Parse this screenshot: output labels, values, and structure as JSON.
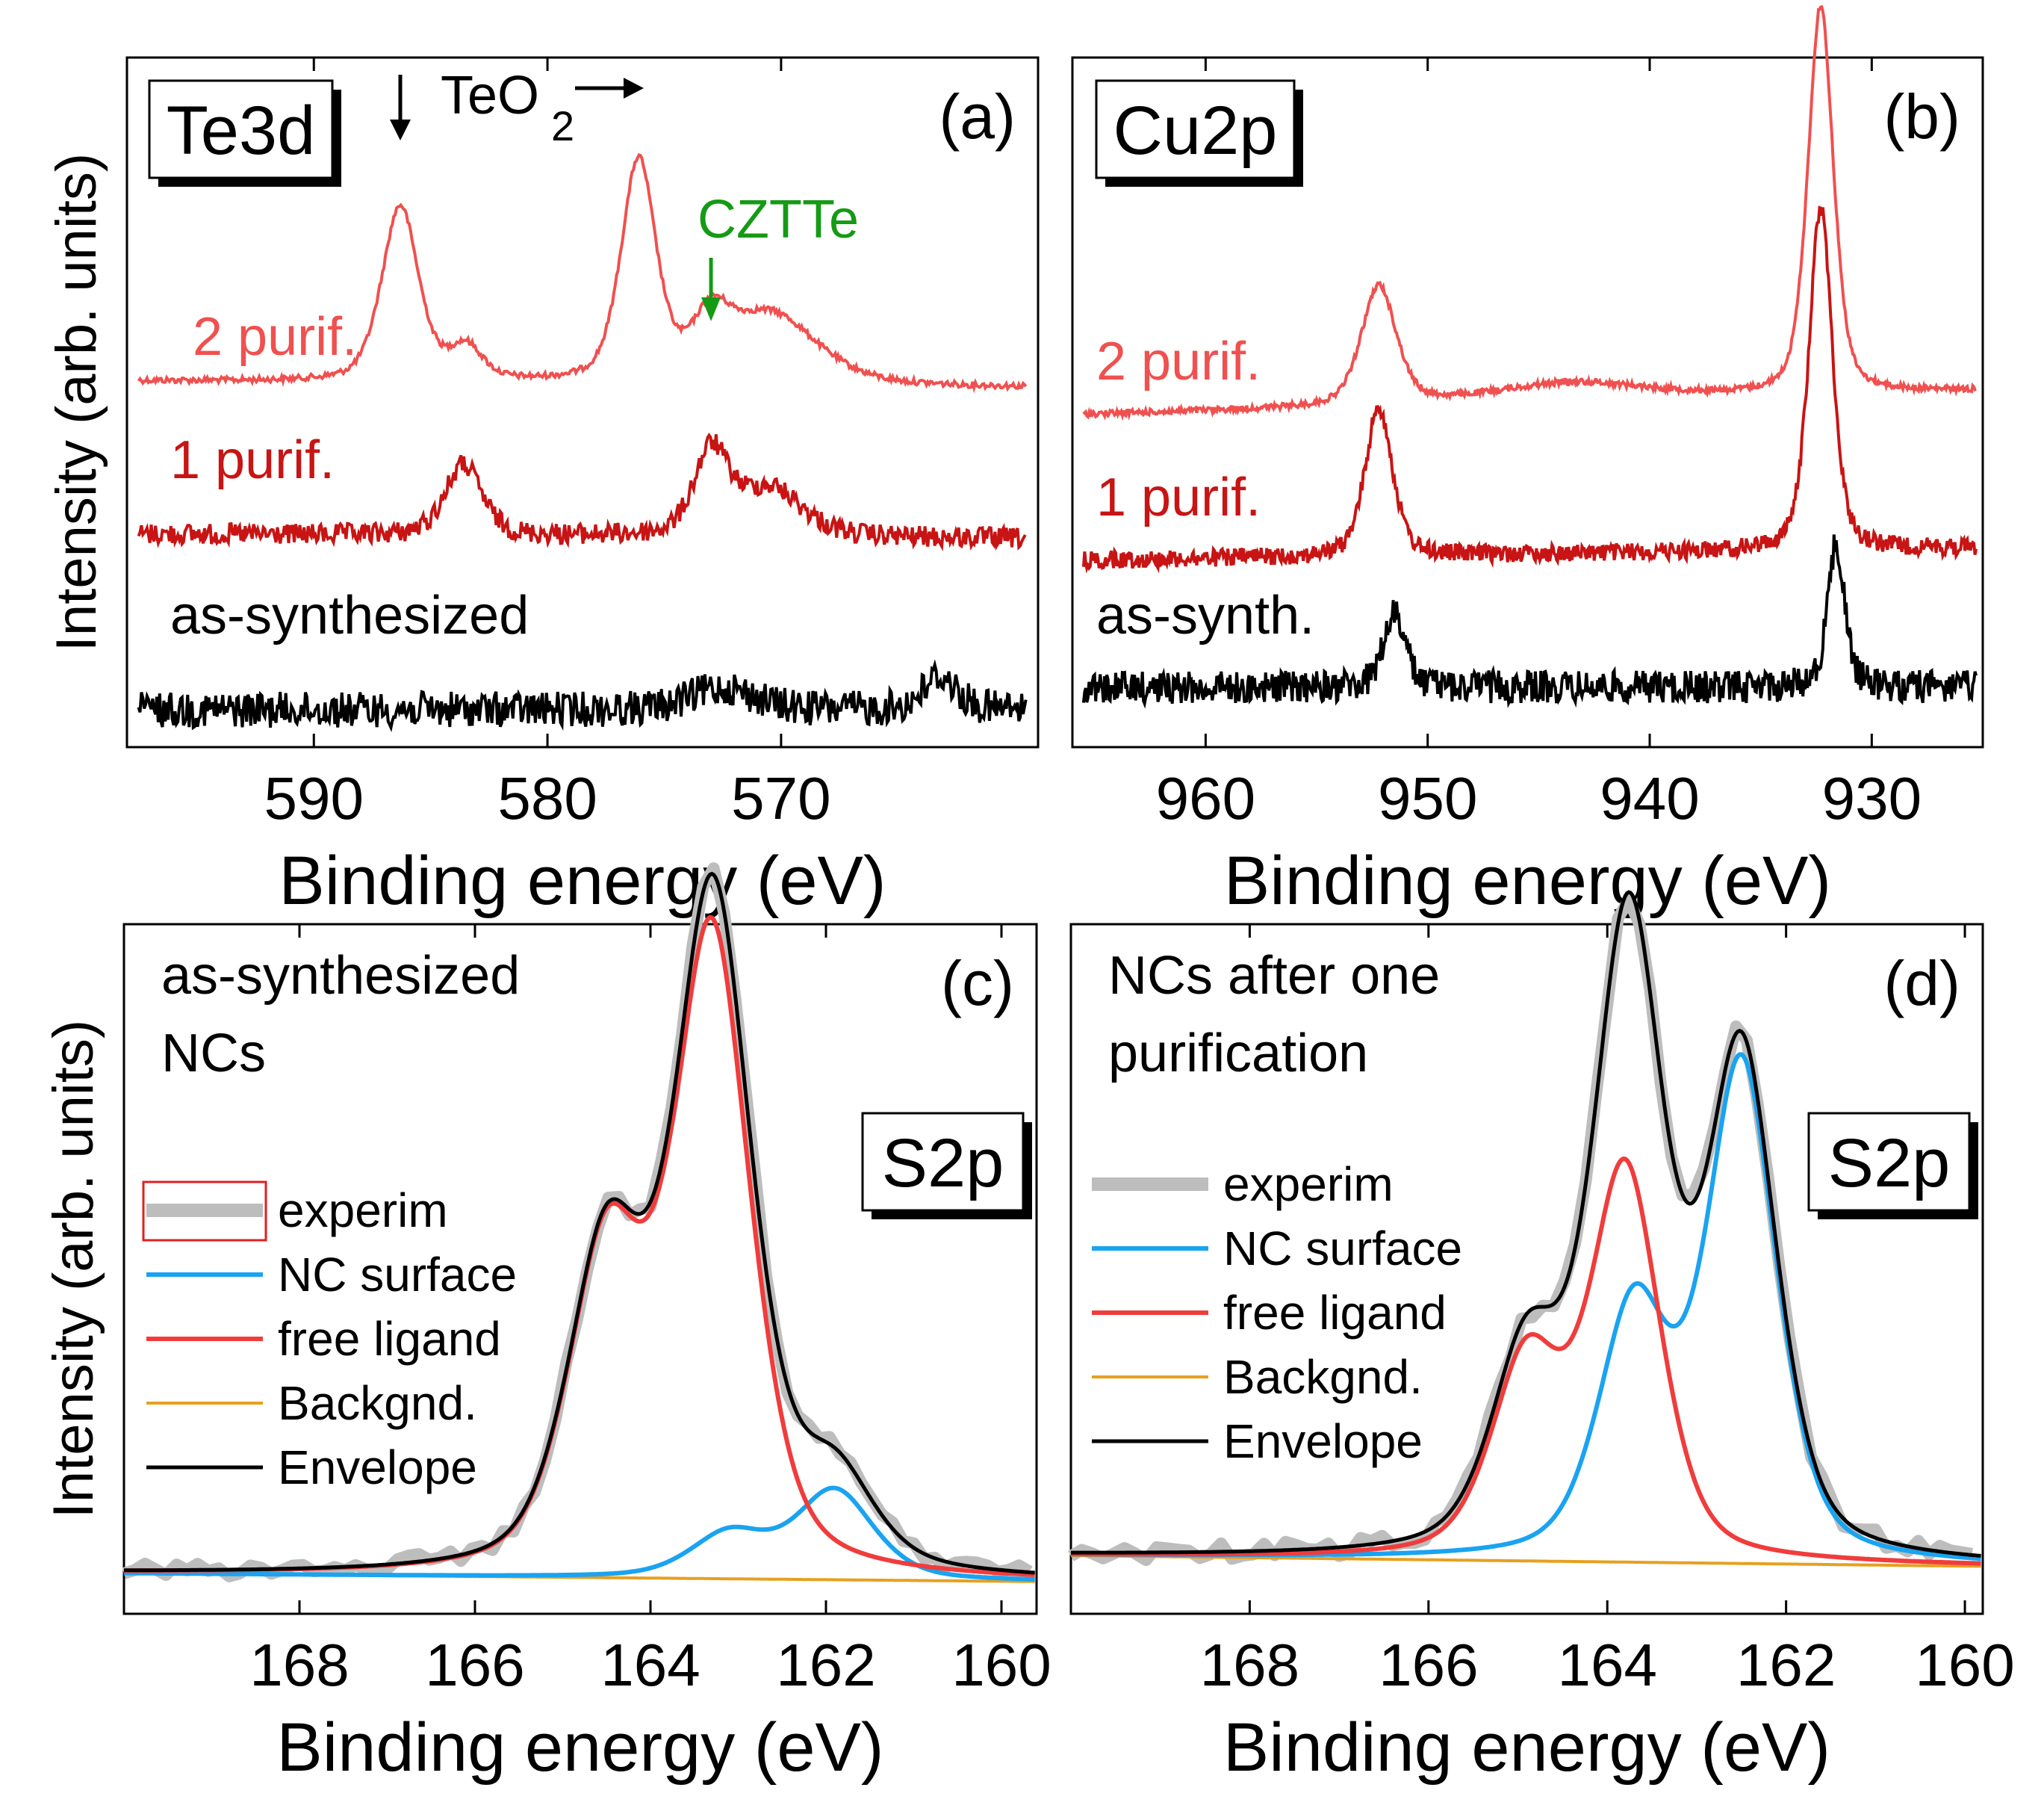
{
  "chart_data": [
    {
      "panel": "(a)",
      "type": "line",
      "box_label": "Te3d",
      "xlabel": "Binding energy (eV)",
      "ylabel": "Intensity (arb. units)",
      "xlim": [
        598,
        559
      ],
      "xticks": [
        590,
        580,
        570
      ],
      "yticks": false,
      "annotations": [
        {
          "text": "TeO",
          "subscript": "2",
          "color": "#000000",
          "at_energy": [
            586.3,
            576.1
          ],
          "arrow_down_at": 586.3
        },
        {
          "text": "CZTTe",
          "color": "#159a15",
          "at_energy": 573.0,
          "arrow_down": true
        }
      ],
      "series": [
        {
          "name": "2 purif.",
          "color": "#f05050",
          "peaks_eV": [
            586.3,
            583.5,
            576.1,
            573.0,
            570.5
          ],
          "baseline_level": "top"
        },
        {
          "name": "1 purif.",
          "color": "#c81414",
          "peaks_eV": [
            583.6,
            573.0,
            570.5
          ],
          "baseline_level": "middle"
        },
        {
          "name": "as-synthesized",
          "color": "#000000",
          "peaks_eV": [
            572.5,
            563.2
          ],
          "baseline_level": "bottom"
        }
      ]
    },
    {
      "panel": "(b)",
      "type": "line",
      "box_label": "Cu2p",
      "xlabel": "Binding energy (eV)",
      "ylabel": "",
      "xlim": [
        966,
        925
      ],
      "xticks": [
        960,
        950,
        940,
        930
      ],
      "yticks": false,
      "series": [
        {
          "name": "2 purif.",
          "color": "#f05050",
          "peaks_eV": [
            952.2,
            943.5,
            932.3
          ]
        },
        {
          "name": "1 purif.",
          "color": "#c81414",
          "peaks_eV": [
            952.2,
            932.3
          ]
        },
        {
          "name": "as-synth.",
          "color": "#000000",
          "peaks_eV": [
            951.5,
            931.6
          ]
        }
      ]
    },
    {
      "panel": "(c)",
      "type": "line",
      "title": "as-synthesized NCs",
      "box_label": "S2p",
      "xlabel": "Binding energy (eV)",
      "ylabel": "Intensity (arb. units)",
      "xlim": [
        170,
        159.6
      ],
      "xticks": [
        168,
        166,
        164,
        162,
        160
      ],
      "yticks": false,
      "legend": [
        "experim",
        "NC surface",
        "free ligand",
        "Backgnd.",
        "Envelope"
      ],
      "series": [
        {
          "name": "experim",
          "color": "#bdbdbd"
        },
        {
          "name": "NC surface",
          "color": "#1aa3f0",
          "components": [
            {
              "center": 161.9,
              "height": 0.1
            },
            {
              "center": 163.1,
              "height": 0.05
            }
          ]
        },
        {
          "name": "free ligand",
          "color": "#f03c3c",
          "components": [
            {
              "center": 163.3,
              "height": 0.72
            },
            {
              "center": 164.5,
              "height": 0.36
            }
          ]
        },
        {
          "name": "Backgnd.",
          "color": "#e6a020"
        },
        {
          "name": "Envelope",
          "color": "#000000"
        }
      ]
    },
    {
      "panel": "(d)",
      "type": "line",
      "title": "NCs after one purification",
      "box_label": "S2p",
      "xlabel": "Binding energy (eV)",
      "ylabel": "",
      "xlim": [
        170,
        159.8
      ],
      "xticks": [
        168,
        166,
        164,
        162,
        160
      ],
      "yticks": false,
      "legend": [
        "experim",
        "NC surface",
        "free ligand",
        "Backgnd.",
        "Envelope"
      ],
      "series": [
        {
          "name": "experim",
          "color": "#bdbdbd"
        },
        {
          "name": "NC surface",
          "color": "#1aa3f0",
          "components": [
            {
              "center": 162.5,
              "height": 0.56
            },
            {
              "center": 163.7,
              "height": 0.28
            }
          ]
        },
        {
          "name": "free ligand",
          "color": "#f03c3c",
          "components": [
            {
              "center": 163.8,
              "height": 0.44
            },
            {
              "center": 164.9,
              "height": 0.22
            }
          ]
        },
        {
          "name": "Backgnd.",
          "color": "#e6a020"
        },
        {
          "name": "Envelope",
          "color": "#000000"
        }
      ]
    }
  ]
}
